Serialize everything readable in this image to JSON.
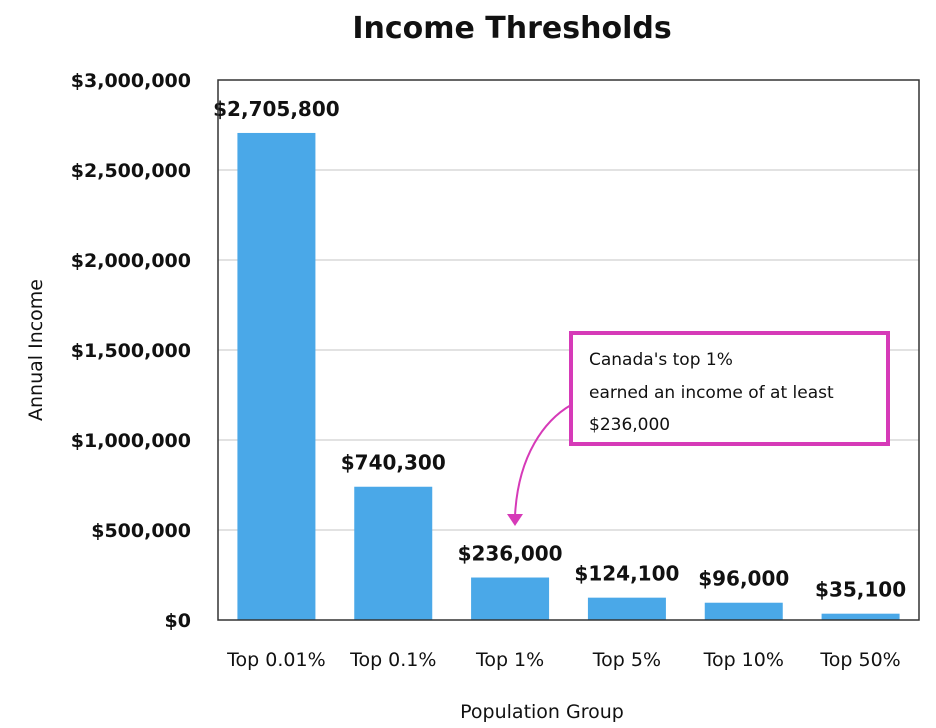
{
  "chart_data": {
    "type": "bar",
    "title": "Income Thresholds",
    "xlabel": "Population Group",
    "ylabel": "Annual Income",
    "categories": [
      "Top 0.01%",
      "Top 0.1%",
      "Top 1%",
      "Top 5%",
      "Top 10%",
      "Top 50%"
    ],
    "values": [
      2705800,
      740300,
      236000,
      124100,
      96000,
      35100
    ],
    "value_labels": [
      "$2,705,800",
      "$740,300",
      "$236,000",
      "$124,100",
      "$96,000",
      "$35,100"
    ],
    "ylim": [
      0,
      3000000
    ],
    "yticks": [
      0,
      500000,
      1000000,
      1500000,
      2000000,
      2500000,
      3000000
    ],
    "ytick_labels": [
      "$0",
      "$500,000",
      "$1,000,000",
      "$1,500,000",
      "$2,000,000",
      "$2,500,000",
      "$3,000,000"
    ],
    "grid": true,
    "colors": {
      "bar": "#4aa8e8",
      "annotation": "#d63ab8",
      "grid": "#d9d9d9",
      "axis": "#333333"
    },
    "annotation": {
      "lines": [
        "Canada's top 1%",
        "earned an income of at least",
        "$236,000"
      ],
      "target_category": "Top 1%"
    }
  }
}
